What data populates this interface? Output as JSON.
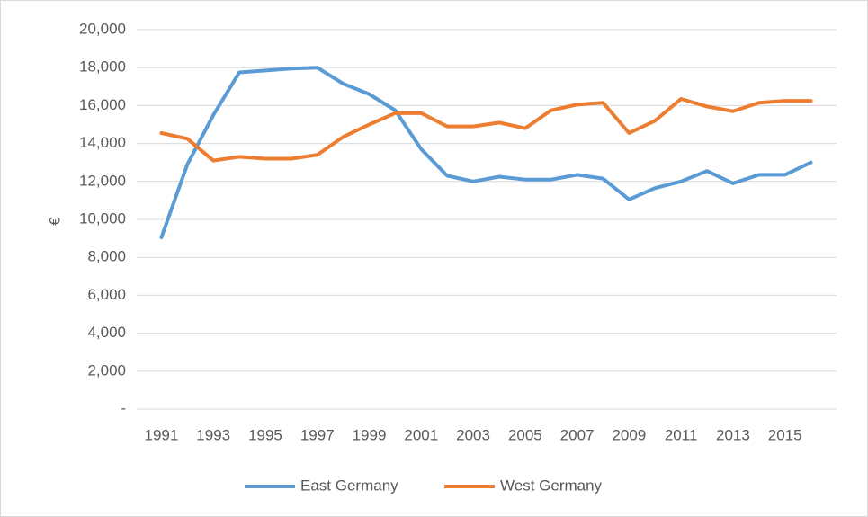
{
  "chart_data": {
    "type": "line",
    "y_label": "€",
    "categories": [
      "1991",
      null,
      "1993",
      null,
      "1995",
      null,
      "1997",
      null,
      "1999",
      null,
      "2001",
      null,
      "2003",
      null,
      "2005",
      null,
      "2007",
      null,
      "2009",
      null,
      "2011",
      null,
      "2013",
      null,
      "2015",
      null
    ],
    "series": [
      {
        "name": "East Germany",
        "color": "#5b9bd5",
        "values": [
          9050,
          12900,
          15500,
          17750,
          17850,
          17950,
          18000,
          17150,
          16600,
          15750,
          13700,
          12300,
          12000,
          12250,
          12100,
          12100,
          12350,
          12150,
          11050,
          11650,
          12000,
          12550,
          11900,
          12350,
          12350,
          13000
        ]
      },
      {
        "name": "West Germany",
        "color": "#ed7d31",
        "values": [
          14550,
          14250,
          13100,
          13300,
          13200,
          13200,
          13400,
          14350,
          15000,
          15600,
          15600,
          14900,
          14900,
          15100,
          14800,
          15750,
          16050,
          16150,
          14550,
          15200,
          16350,
          15950,
          15700,
          16150,
          16250,
          16250
        ]
      }
    ],
    "ylim": [
      0,
      20000
    ],
    "yticks": [
      {
        "value": 0,
        "label": "-"
      },
      {
        "value": 2000,
        "label": "2,000"
      },
      {
        "value": 4000,
        "label": "4,000"
      },
      {
        "value": 6000,
        "label": "6,000"
      },
      {
        "value": 8000,
        "label": "8,000"
      },
      {
        "value": 10000,
        "label": "10,000"
      },
      {
        "value": 12000,
        "label": "12,000"
      },
      {
        "value": 14000,
        "label": "14,000"
      },
      {
        "value": 16000,
        "label": "16,000"
      },
      {
        "value": 18000,
        "label": "18,000"
      },
      {
        "value": 20000,
        "label": "20,000"
      }
    ],
    "grid": true,
    "legend": "bottom"
  }
}
